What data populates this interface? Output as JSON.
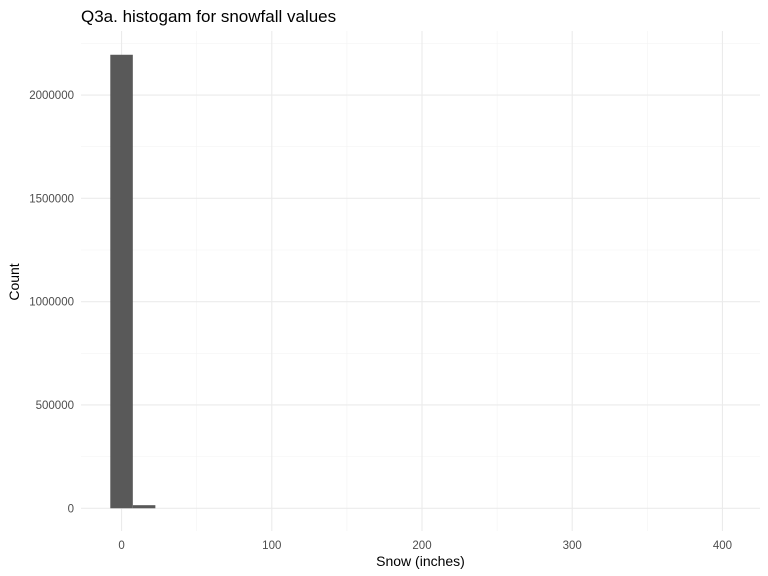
{
  "chart_data": {
    "type": "bar",
    "title": "Q3a. histogam for snowfall values",
    "xlabel": "Snow (inches)",
    "ylabel": "Count",
    "xlim": [
      -27,
      425
    ],
    "ylim": [
      -110000,
      2310000
    ],
    "x_ticks": [
      0,
      100,
      200,
      300,
      400
    ],
    "x_tick_labels": [
      "0",
      "100",
      "200",
      "300",
      "400"
    ],
    "y_ticks": [
      0,
      500000,
      1000000,
      1500000,
      2000000
    ],
    "y_tick_labels": [
      "0",
      "500000",
      "1000000",
      "1500000",
      "2000000"
    ],
    "grid": true,
    "bin_width": 15,
    "bins": [
      {
        "x0": -7.5,
        "x1": 7.5,
        "count": 2195000
      },
      {
        "x0": 7.5,
        "x1": 22.5,
        "count": 15000
      }
    ]
  }
}
